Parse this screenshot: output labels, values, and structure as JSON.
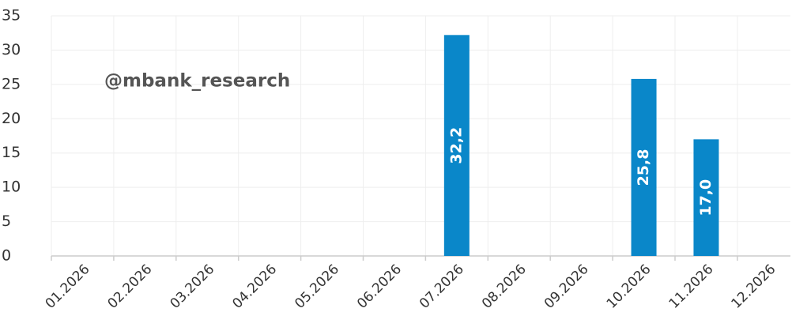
{
  "chart_data": {
    "type": "bar",
    "annotation": "@mbank_research",
    "categories": [
      "01.2026",
      "02.2026",
      "03.2026",
      "04.2026",
      "05.2026",
      "06.2026",
      "07.2026",
      "08.2026",
      "09.2026",
      "10.2026",
      "11.2026",
      "12.2026"
    ],
    "values": [
      null,
      null,
      null,
      null,
      null,
      null,
      32.2,
      null,
      null,
      25.8,
      17.0,
      null
    ],
    "value_labels": [
      null,
      null,
      null,
      null,
      null,
      null,
      "32,2",
      null,
      null,
      "25,8",
      "17,0",
      null
    ],
    "color": "#0a87c9",
    "ylim": [
      0,
      35
    ],
    "yticks": [
      0,
      5,
      10,
      15,
      20,
      25,
      30,
      35
    ],
    "grid": true
  }
}
